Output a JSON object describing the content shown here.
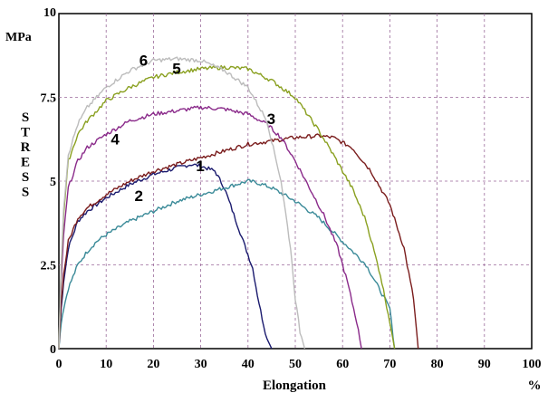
{
  "chart_data": {
    "type": "line",
    "title": "",
    "xlabel": "Elongation",
    "xunit": "%",
    "ylabel": "STRESS",
    "yunit": "MPa",
    "xlim": [
      0,
      100
    ],
    "ylim": [
      0,
      10
    ],
    "xticks": [
      "0",
      "10",
      "20",
      "30",
      "40",
      "50",
      "60",
      "70",
      "80",
      "90",
      "100"
    ],
    "yticks": [
      "0",
      "2.5",
      "5",
      "7.5",
      "10"
    ],
    "grid": true,
    "series": [
      {
        "name": "1",
        "color": "#1a1a6e",
        "x": [
          0,
          0.5,
          1,
          2,
          4,
          6,
          8,
          10,
          15,
          20,
          25,
          28,
          30,
          33,
          35,
          37,
          39,
          41,
          42,
          43,
          44,
          45
        ],
        "y": [
          0,
          1.2,
          2.0,
          3.0,
          3.8,
          4.1,
          4.3,
          4.5,
          4.9,
          5.2,
          5.4,
          5.5,
          5.45,
          5.3,
          4.8,
          4.0,
          3.2,
          2.4,
          1.6,
          0.9,
          0.3,
          0
        ],
        "label_at": [
          29,
          5.3
        ]
      },
      {
        "name": "2",
        "color": "#3a8a98",
        "x": [
          0,
          0.5,
          1,
          2,
          4,
          6,
          8,
          10,
          15,
          20,
          25,
          30,
          35,
          40,
          42,
          45,
          50,
          55,
          60,
          65,
          70,
          71
        ],
        "y": [
          0,
          0.8,
          1.2,
          1.8,
          2.5,
          2.9,
          3.2,
          3.4,
          3.8,
          4.1,
          4.4,
          4.6,
          4.8,
          5.0,
          4.95,
          4.8,
          4.4,
          3.9,
          3.2,
          2.5,
          1.2,
          0
        ],
        "label_at": [
          16,
          4.4
        ]
      },
      {
        "name": "3",
        "color": "#7a1c1c",
        "x": [
          0,
          0.5,
          1,
          2,
          4,
          6,
          8,
          10,
          15,
          20,
          25,
          30,
          35,
          40,
          45,
          50,
          55,
          58,
          62,
          66,
          70,
          73,
          75,
          76
        ],
        "y": [
          0,
          1.4,
          2.2,
          3.2,
          3.9,
          4.2,
          4.4,
          4.6,
          5.0,
          5.3,
          5.5,
          5.7,
          5.9,
          6.1,
          6.2,
          6.3,
          6.35,
          6.3,
          6.0,
          5.3,
          4.3,
          3.0,
          1.5,
          0
        ],
        "label_at": [
          44,
          6.7
        ]
      },
      {
        "name": "4",
        "color": "#8a2a8a",
        "x": [
          0,
          0.5,
          1,
          2,
          4,
          6,
          8,
          10,
          15,
          20,
          25,
          30,
          35,
          40,
          44,
          47,
          50,
          53,
          56,
          59,
          61,
          63,
          64
        ],
        "y": [
          0,
          2.0,
          3.4,
          4.8,
          5.6,
          6.0,
          6.2,
          6.4,
          6.8,
          7.0,
          7.1,
          7.2,
          7.15,
          7.0,
          6.7,
          6.3,
          5.6,
          4.8,
          4.0,
          3.0,
          2.0,
          0.8,
          0
        ],
        "label_at": [
          11,
          6.1
        ]
      },
      {
        "name": "5",
        "color": "#8aa020",
        "x": [
          0,
          0.5,
          1,
          2,
          4,
          6,
          8,
          10,
          15,
          20,
          25,
          30,
          35,
          40,
          45,
          50,
          55,
          58,
          62,
          65,
          68,
          70,
          71
        ],
        "y": [
          0,
          2.5,
          4.0,
          5.6,
          6.4,
          6.8,
          7.1,
          7.4,
          7.8,
          8.1,
          8.25,
          8.35,
          8.4,
          8.35,
          8.0,
          7.5,
          6.5,
          5.8,
          4.8,
          3.8,
          2.2,
          0.8,
          0
        ],
        "label_at": [
          24,
          8.2
        ]
      },
      {
        "name": "6",
        "color": "#bcbcbc",
        "x": [
          0,
          0.5,
          1,
          2,
          4,
          6,
          8,
          10,
          15,
          20,
          25,
          30,
          35,
          40,
          44,
          47,
          49,
          50,
          51,
          52
        ],
        "y": [
          0,
          2.6,
          4.2,
          5.8,
          6.7,
          7.2,
          7.5,
          7.8,
          8.3,
          8.6,
          8.65,
          8.6,
          8.3,
          7.8,
          6.8,
          5.0,
          3.0,
          1.5,
          0.5,
          0
        ],
        "label_at": [
          17,
          8.45
        ]
      }
    ]
  }
}
